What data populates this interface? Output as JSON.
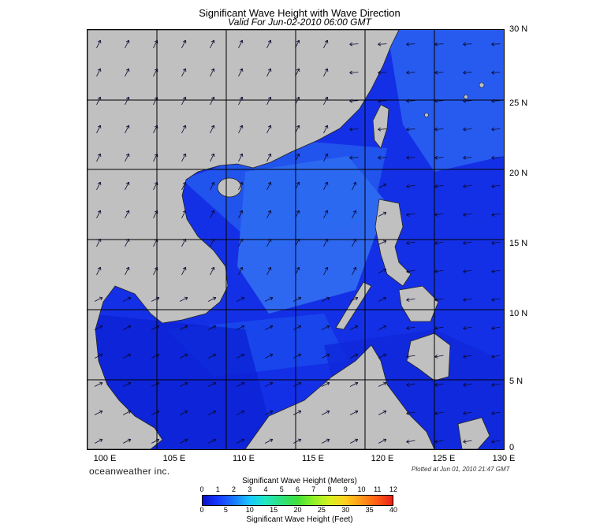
{
  "title": "Significant Wave Height with Wave Direction",
  "subtitle": "Valid For Jun-02-2010 06:00 GMT",
  "lat_labels": [
    "30 N",
    "25 N",
    "20 N",
    "15 N",
    "10 N",
    "5 N",
    "0"
  ],
  "lon_labels": [
    "100 E",
    "105 E",
    "110 E",
    "115 E",
    "120 E",
    "125 E",
    "130 E"
  ],
  "brand": "oceanweather inc.",
  "plotted": "Plotted at Jun 01, 2010 21:47 GMT",
  "colorbar": {
    "meters_title": "Significant Wave Height (Meters)",
    "meters_ticks": [
      "0",
      "1",
      "2",
      "3",
      "4",
      "5",
      "6",
      "7",
      "8",
      "9",
      "10",
      "11",
      "12"
    ],
    "feet_title": "Significant Wave Height (Feet)",
    "feet_ticks": [
      "0",
      "5",
      "10",
      "15",
      "20",
      "25",
      "30",
      "35",
      "40"
    ]
  },
  "colors": {
    "land": "#c0c0c0",
    "ocean_deep": "#0a1ad8",
    "ocean_mid": "#1a48f0",
    "ocean_light": "#2a70f4"
  }
}
